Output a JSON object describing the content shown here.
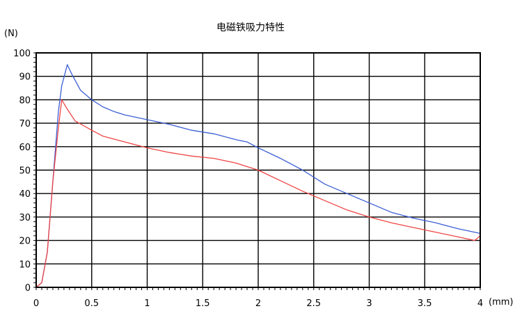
{
  "chart_data": {
    "type": "line",
    "title": "电磁铁吸力特性",
    "ylabel": "(N)",
    "xlabel": "(mm)",
    "xlim": [
      0,
      4
    ],
    "ylim": [
      0,
      100
    ],
    "grid": true,
    "x_ticks": [
      0,
      0.5,
      1,
      1.5,
      2,
      2.5,
      3,
      3.5,
      4
    ],
    "x_tick_labels": [
      "0",
      "0.5",
      "1",
      "1.5",
      "2",
      "2.5",
      "3",
      "3.5",
      "4"
    ],
    "y_ticks": [
      0,
      10,
      20,
      30,
      40,
      50,
      60,
      70,
      80,
      90,
      100
    ],
    "y_tick_labels": [
      "0",
      "10",
      "20",
      "30",
      "40",
      "50",
      "60",
      "70",
      "80",
      "90",
      "100"
    ],
    "series": [
      {
        "color": "#3b5fd4",
        "points": [
          [
            0,
            0
          ],
          [
            0.05,
            2
          ],
          [
            0.1,
            15
          ],
          [
            0.15,
            45
          ],
          [
            0.2,
            75
          ],
          [
            0.23,
            86
          ],
          [
            0.28,
            95
          ],
          [
            0.32,
            91
          ],
          [
            0.4,
            84
          ],
          [
            0.5,
            80
          ],
          [
            0.6,
            77
          ],
          [
            0.7,
            75
          ],
          [
            0.8,
            73.5
          ],
          [
            1.0,
            71.5
          ],
          [
            1.2,
            69.5
          ],
          [
            1.4,
            67
          ],
          [
            1.6,
            65.5
          ],
          [
            1.8,
            63
          ],
          [
            1.9,
            62
          ],
          [
            2.0,
            59.5
          ],
          [
            2.2,
            55
          ],
          [
            2.4,
            50
          ],
          [
            2.6,
            44
          ],
          [
            2.8,
            40
          ],
          [
            3.0,
            36
          ],
          [
            3.2,
            32
          ],
          [
            3.4,
            29.5
          ],
          [
            3.6,
            27.5
          ],
          [
            3.8,
            25
          ],
          [
            4.0,
            23
          ]
        ]
      },
      {
        "color": "#ee4444",
        "points": [
          [
            0,
            0
          ],
          [
            0.05,
            2
          ],
          [
            0.1,
            15
          ],
          [
            0.15,
            45
          ],
          [
            0.2,
            68
          ],
          [
            0.23,
            80
          ],
          [
            0.28,
            76
          ],
          [
            0.35,
            71
          ],
          [
            0.5,
            67
          ],
          [
            0.6,
            64.5
          ],
          [
            0.8,
            62
          ],
          [
            1.0,
            59.5
          ],
          [
            1.2,
            57.5
          ],
          [
            1.4,
            56
          ],
          [
            1.6,
            55
          ],
          [
            1.8,
            53
          ],
          [
            2.0,
            50
          ],
          [
            2.2,
            45.5
          ],
          [
            2.4,
            41
          ],
          [
            2.6,
            37
          ],
          [
            2.8,
            33
          ],
          [
            3.0,
            30
          ],
          [
            3.2,
            27.5
          ],
          [
            3.4,
            25.5
          ],
          [
            3.6,
            23.5
          ],
          [
            3.8,
            21.5
          ],
          [
            3.95,
            20
          ],
          [
            4.0,
            22
          ]
        ]
      }
    ]
  }
}
